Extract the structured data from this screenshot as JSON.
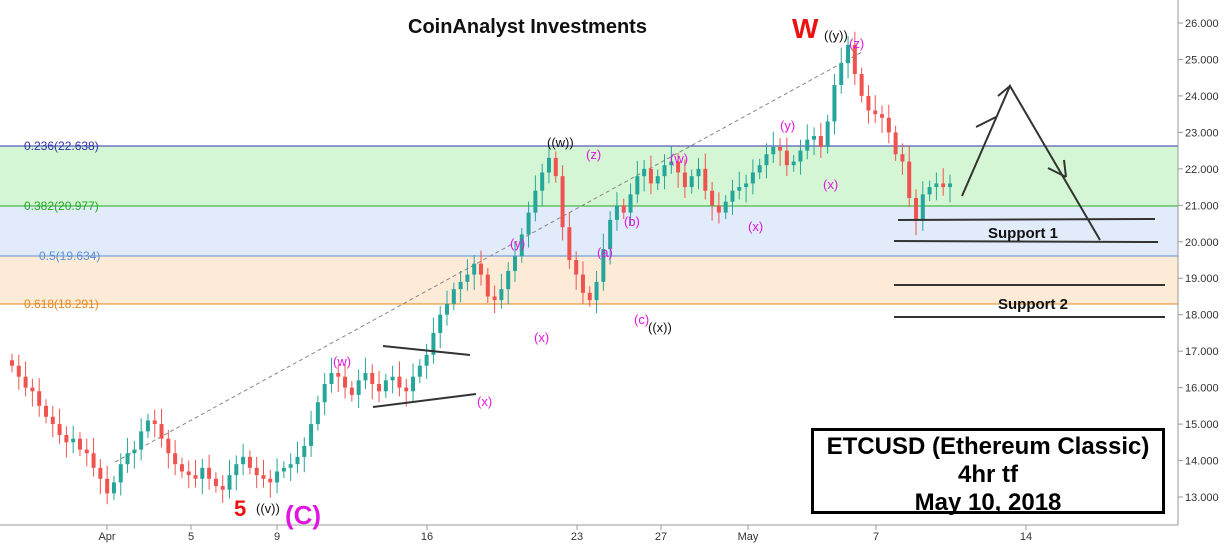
{
  "chart_data": {
    "type": "candlestick",
    "title": "CoinAnalyst Investments",
    "symbol_box": {
      "line1": "ETCUSD (Ethereum Classic)",
      "line2": "4hr tf",
      "line3": "May 10, 2018"
    },
    "y_axis": {
      "ticks": [
        "13.000",
        "14.000",
        "15.000",
        "16.000",
        "17.000",
        "18.000",
        "19.000",
        "20.000",
        "21.000",
        "22.000",
        "23.000",
        "24.000",
        "25.000",
        "26.000"
      ],
      "ylim": [
        12.3,
        26.4
      ]
    },
    "x_axis": {
      "ticks": [
        "Apr",
        "5",
        "9",
        "16",
        "23",
        "27",
        "May",
        "7",
        "14"
      ]
    },
    "fib_levels": [
      {
        "label": "0.236(22.638)",
        "value": 22.638,
        "color": "#3333aa"
      },
      {
        "label": "0.382(20.977)",
        "value": 20.977,
        "color": "#22aa22"
      },
      {
        "label": "0.5(19.634)",
        "value": 19.634,
        "color": "#5b8fd6"
      },
      {
        "label": "0.618(18.291)",
        "value": 18.291,
        "color": "#e08a1e"
      }
    ],
    "support_labels": [
      "Support 1",
      "Support 2"
    ],
    "wave_labels": {
      "W": "W",
      "W_sub": "((y))",
      "five": "5",
      "five_sub": "((v))",
      "C": "(C)",
      "w": "(w)",
      "x1": "(x)",
      "y1": "(y)",
      "ww": "((w))",
      "z1": "(z)",
      "a": "(a)",
      "b": "(b)",
      "c": "(c)",
      "xx": "((x))",
      "x2": "(x)",
      "w2": "(w)",
      "x3": "(x)",
      "y2": "(y)",
      "x4": "(x)",
      "z2": "(z)"
    },
    "colors": {
      "up": "#26a69a",
      "down": "#ef5350",
      "fib_236_382_zone": "#ccf5cc",
      "fib_382_5_zone": "#dce8f8",
      "fib_5_618_zone": "#fde8d0",
      "wave_magenta": "#e016e0",
      "wave_red": "#ee1111"
    }
  }
}
